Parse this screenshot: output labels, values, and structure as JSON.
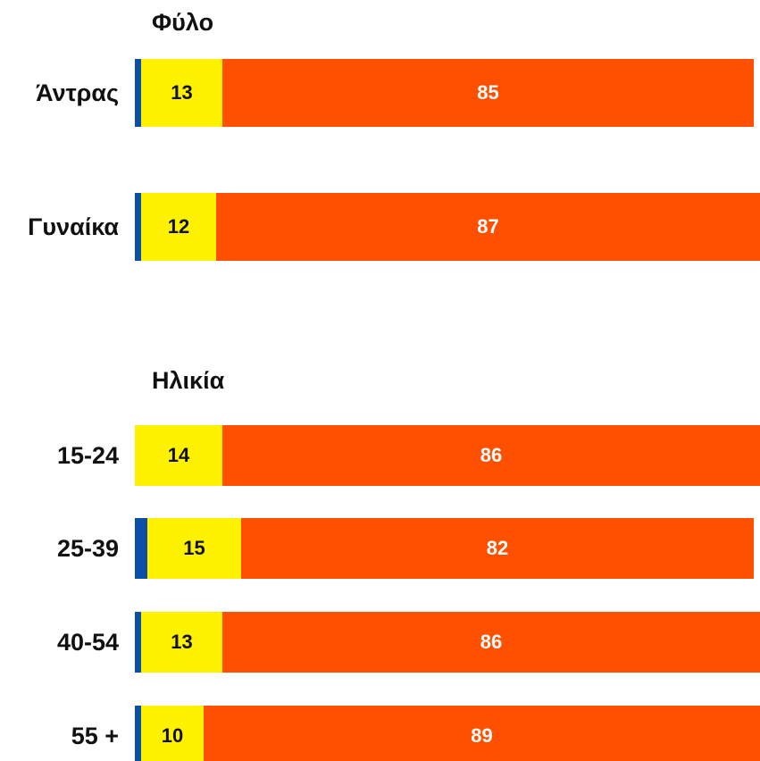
{
  "chart_data": [
    {
      "type": "stacked-bar",
      "title": "Φύλο",
      "categories": [
        "Άντρας",
        "Γυναίκα"
      ],
      "series": [
        {
          "color": "#0d4ea6",
          "values": [
            1,
            1
          ]
        },
        {
          "color": "#fff200",
          "values": [
            13,
            12
          ]
        },
        {
          "color": "#ff5000",
          "values": [
            85,
            87
          ]
        }
      ],
      "xlim": [
        0,
        100
      ]
    },
    {
      "type": "stacked-bar",
      "title": "Ηλικία",
      "categories": [
        "15-24",
        "25-39",
        "40-54",
        "55 +"
      ],
      "series": [
        {
          "color": "#0d4ea6",
          "values": [
            0,
            2,
            1,
            1
          ]
        },
        {
          "color": "#fff200",
          "values": [
            14,
            15,
            13,
            10
          ]
        },
        {
          "color": "#ff5000",
          "values": [
            86,
            82,
            86,
            89
          ]
        }
      ],
      "xlim": [
        0,
        100
      ]
    }
  ]
}
